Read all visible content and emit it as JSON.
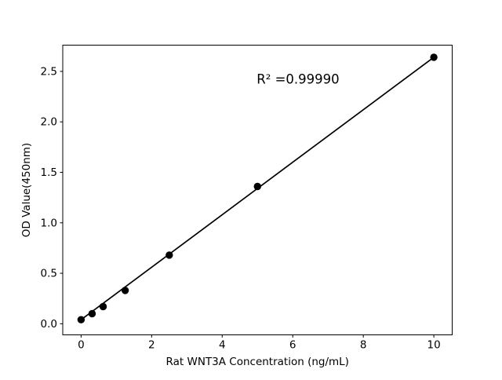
{
  "figure": {
    "background": "#ffffff"
  },
  "chart_data": {
    "type": "scatter",
    "title": "",
    "xlabel": "Rat WNT3A Concentration (ng/mL)",
    "ylabel": "OD Value(450nm)",
    "annotation": {
      "text": "R² =0.99990",
      "x": 6.15,
      "y": 2.42
    },
    "x": [
      0,
      0.3125,
      0.625,
      1.25,
      2.5,
      5,
      10
    ],
    "y": [
      0.04,
      0.1,
      0.17,
      0.33,
      0.68,
      1.36,
      2.64
    ],
    "fit_line": {
      "x": [
        0,
        10
      ],
      "y": [
        0.04,
        2.64
      ]
    },
    "xticks": {
      "values": [
        0,
        2,
        4,
        6,
        8,
        10
      ],
      "labels": [
        "0",
        "2",
        "4",
        "6",
        "8",
        "10"
      ]
    },
    "yticks": {
      "values": [
        0,
        0.5,
        1.0,
        1.5,
        2.0,
        2.5
      ],
      "labels": [
        "0.0",
        "0.5",
        "1.0",
        "1.5",
        "2.0",
        "2.5"
      ]
    },
    "xlim": [
      -0.52,
      10.52
    ],
    "ylim": [
      -0.11,
      2.76
    ],
    "grid": false,
    "legend": null,
    "marker_color": "#000000",
    "line_color": "#000000",
    "axis_color": "#000000",
    "background": "#ffffff"
  }
}
